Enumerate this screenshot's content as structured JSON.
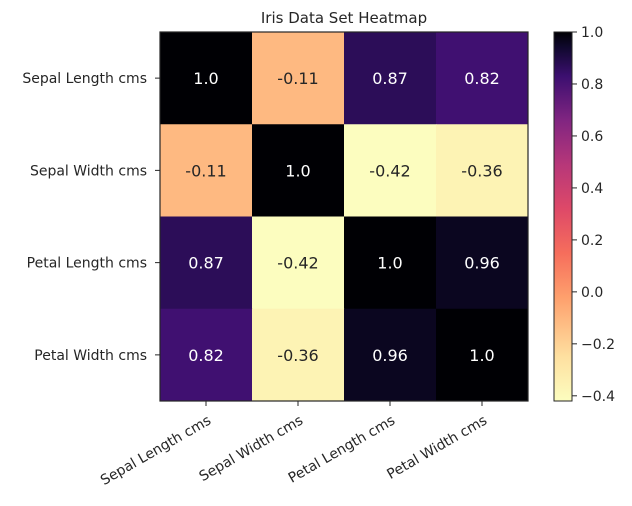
{
  "chart_data": {
    "type": "heatmap",
    "title": "Iris Data Set Heatmap",
    "xlabel": "",
    "ylabel": "",
    "row_labels": [
      "Sepal Length cms",
      "Sepal Width cms",
      "Petal Length cms",
      "Petal Width cms"
    ],
    "col_labels": [
      "Sepal Length cms",
      "Sepal Width cms",
      "Petal Length cms",
      "Petal Width cms"
    ],
    "values": [
      [
        1.0,
        -0.11,
        0.87,
        0.82
      ],
      [
        -0.11,
        1.0,
        -0.42,
        -0.36
      ],
      [
        0.87,
        -0.42,
        1.0,
        0.96
      ],
      [
        0.82,
        -0.36,
        0.96,
        1.0
      ]
    ],
    "cell_labels": [
      [
        "1.0",
        "-0.11",
        "0.87",
        "0.82"
      ],
      [
        "-0.11",
        "1.0",
        "-0.42",
        "-0.36"
      ],
      [
        "0.87",
        "-0.42",
        "1.0",
        "0.96"
      ],
      [
        "0.82",
        "-0.36",
        "0.96",
        "1.0"
      ]
    ],
    "colormap": "magma_r",
    "colorbar": {
      "range": [
        -0.42,
        1.0
      ],
      "ticks": [
        1.0,
        0.8,
        0.6,
        0.4,
        0.2,
        0.0,
        -0.2,
        -0.4
      ],
      "tick_labels": [
        "1.0",
        "0.8",
        "0.6",
        "0.4",
        "0.2",
        "0.0",
        "−0.2",
        "−0.4"
      ],
      "placement": "right"
    },
    "grid": false
  }
}
